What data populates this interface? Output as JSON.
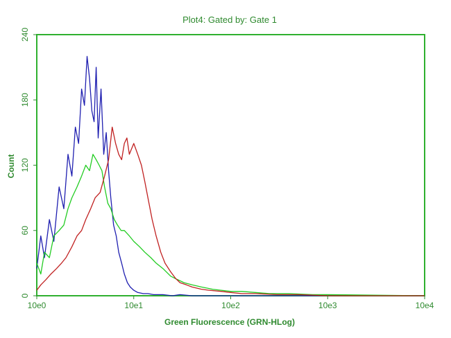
{
  "chart_data": {
    "type": "line",
    "title": "Plot4:  Gated by: Gate 1",
    "xlabel": "Green Fluorescence (GRN-HLog)",
    "ylabel": "Count",
    "xscale": "log",
    "xlim": [
      1,
      10000
    ],
    "ylim": [
      0,
      240
    ],
    "xticks": [
      {
        "value": 1,
        "label": "10e0"
      },
      {
        "value": 10,
        "label": "10e1"
      },
      {
        "value": 100,
        "label": "10e2"
      },
      {
        "value": 1000,
        "label": "10e3"
      },
      {
        "value": 10000,
        "label": "10e4"
      }
    ],
    "yticks": [
      {
        "value": 0,
        "label": "0"
      },
      {
        "value": 60,
        "label": "60"
      },
      {
        "value": 120,
        "label": "120"
      },
      {
        "value": 180,
        "label": "180"
      },
      {
        "value": 240,
        "label": "240"
      }
    ],
    "grid": false,
    "legend": "none",
    "colors": {
      "axis": "#2f8a2f",
      "frame": "#2fb02f",
      "text": "#2f8a2f"
    },
    "series": [
      {
        "color": "#1f1fb0",
        "x": [
          1.0,
          1.1,
          1.2,
          1.35,
          1.5,
          1.7,
          1.9,
          2.1,
          2.3,
          2.5,
          2.7,
          2.9,
          3.1,
          3.3,
          3.5,
          3.7,
          3.9,
          4.1,
          4.3,
          4.6,
          4.9,
          5.2,
          5.5,
          5.8,
          6.2,
          6.6,
          7.0,
          7.5,
          8.0,
          8.6,
          9.2,
          10.0,
          11.0,
          12.5,
          14.0,
          16.0,
          20.0,
          25.0,
          30.0,
          40.0,
          60.0,
          100.0,
          1000.0,
          10000.0
        ],
        "y": [
          25,
          55,
          35,
          70,
          50,
          100,
          80,
          130,
          110,
          155,
          140,
          190,
          175,
          220,
          200,
          170,
          160,
          210,
          145,
          190,
          130,
          150,
          115,
          90,
          65,
          55,
          40,
          30,
          20,
          12,
          8,
          5,
          3,
          2,
          2,
          1,
          1,
          0,
          1,
          0,
          0,
          0,
          0,
          0
        ]
      },
      {
        "color": "#22cc22",
        "x": [
          1.0,
          1.1,
          1.2,
          1.35,
          1.5,
          1.7,
          1.9,
          2.1,
          2.3,
          2.6,
          2.9,
          3.2,
          3.5,
          3.8,
          4.1,
          4.4,
          4.7,
          5.0,
          5.4,
          5.8,
          6.3,
          6.8,
          7.4,
          8.0,
          9.0,
          10.0,
          11.5,
          13.0,
          15.0,
          17.0,
          20.0,
          24.0,
          28.0,
          33.0,
          40.0,
          50.0,
          65.0,
          80.0,
          100.0,
          130.0,
          180.0,
          250.0,
          400.0,
          700.0,
          1000.0,
          10000.0
        ],
        "y": [
          30,
          20,
          40,
          35,
          55,
          60,
          65,
          80,
          90,
          100,
          110,
          120,
          115,
          130,
          125,
          120,
          115,
          100,
          85,
          80,
          70,
          65,
          60,
          60,
          55,
          50,
          45,
          40,
          35,
          30,
          25,
          18,
          15,
          12,
          10,
          8,
          6,
          5,
          4,
          4,
          3,
          2,
          2,
          1,
          1,
          0
        ]
      },
      {
        "color": "#c02020",
        "x": [
          1.0,
          1.1,
          1.25,
          1.4,
          1.6,
          1.8,
          2.0,
          2.3,
          2.6,
          2.9,
          3.2,
          3.6,
          4.0,
          4.5,
          5.0,
          5.5,
          6.0,
          6.5,
          7.0,
          7.5,
          8.0,
          8.5,
          9.0,
          9.5,
          10.0,
          11.0,
          12.0,
          13.0,
          14.0,
          15.5,
          17.0,
          19.0,
          21.0,
          24.0,
          27.0,
          30.0,
          35.0,
          40.0,
          50.0,
          60.0,
          80.0,
          100.0,
          130.0,
          180.0,
          300.0,
          500.0,
          1000.0,
          10000.0
        ],
        "y": [
          5,
          10,
          15,
          20,
          25,
          30,
          35,
          45,
          55,
          60,
          70,
          80,
          90,
          95,
          110,
          125,
          155,
          140,
          130,
          125,
          140,
          145,
          130,
          135,
          140,
          130,
          120,
          105,
          90,
          70,
          55,
          40,
          30,
          22,
          16,
          12,
          10,
          8,
          6,
          5,
          4,
          3,
          2,
          2,
          1,
          1,
          0,
          0
        ]
      }
    ]
  }
}
